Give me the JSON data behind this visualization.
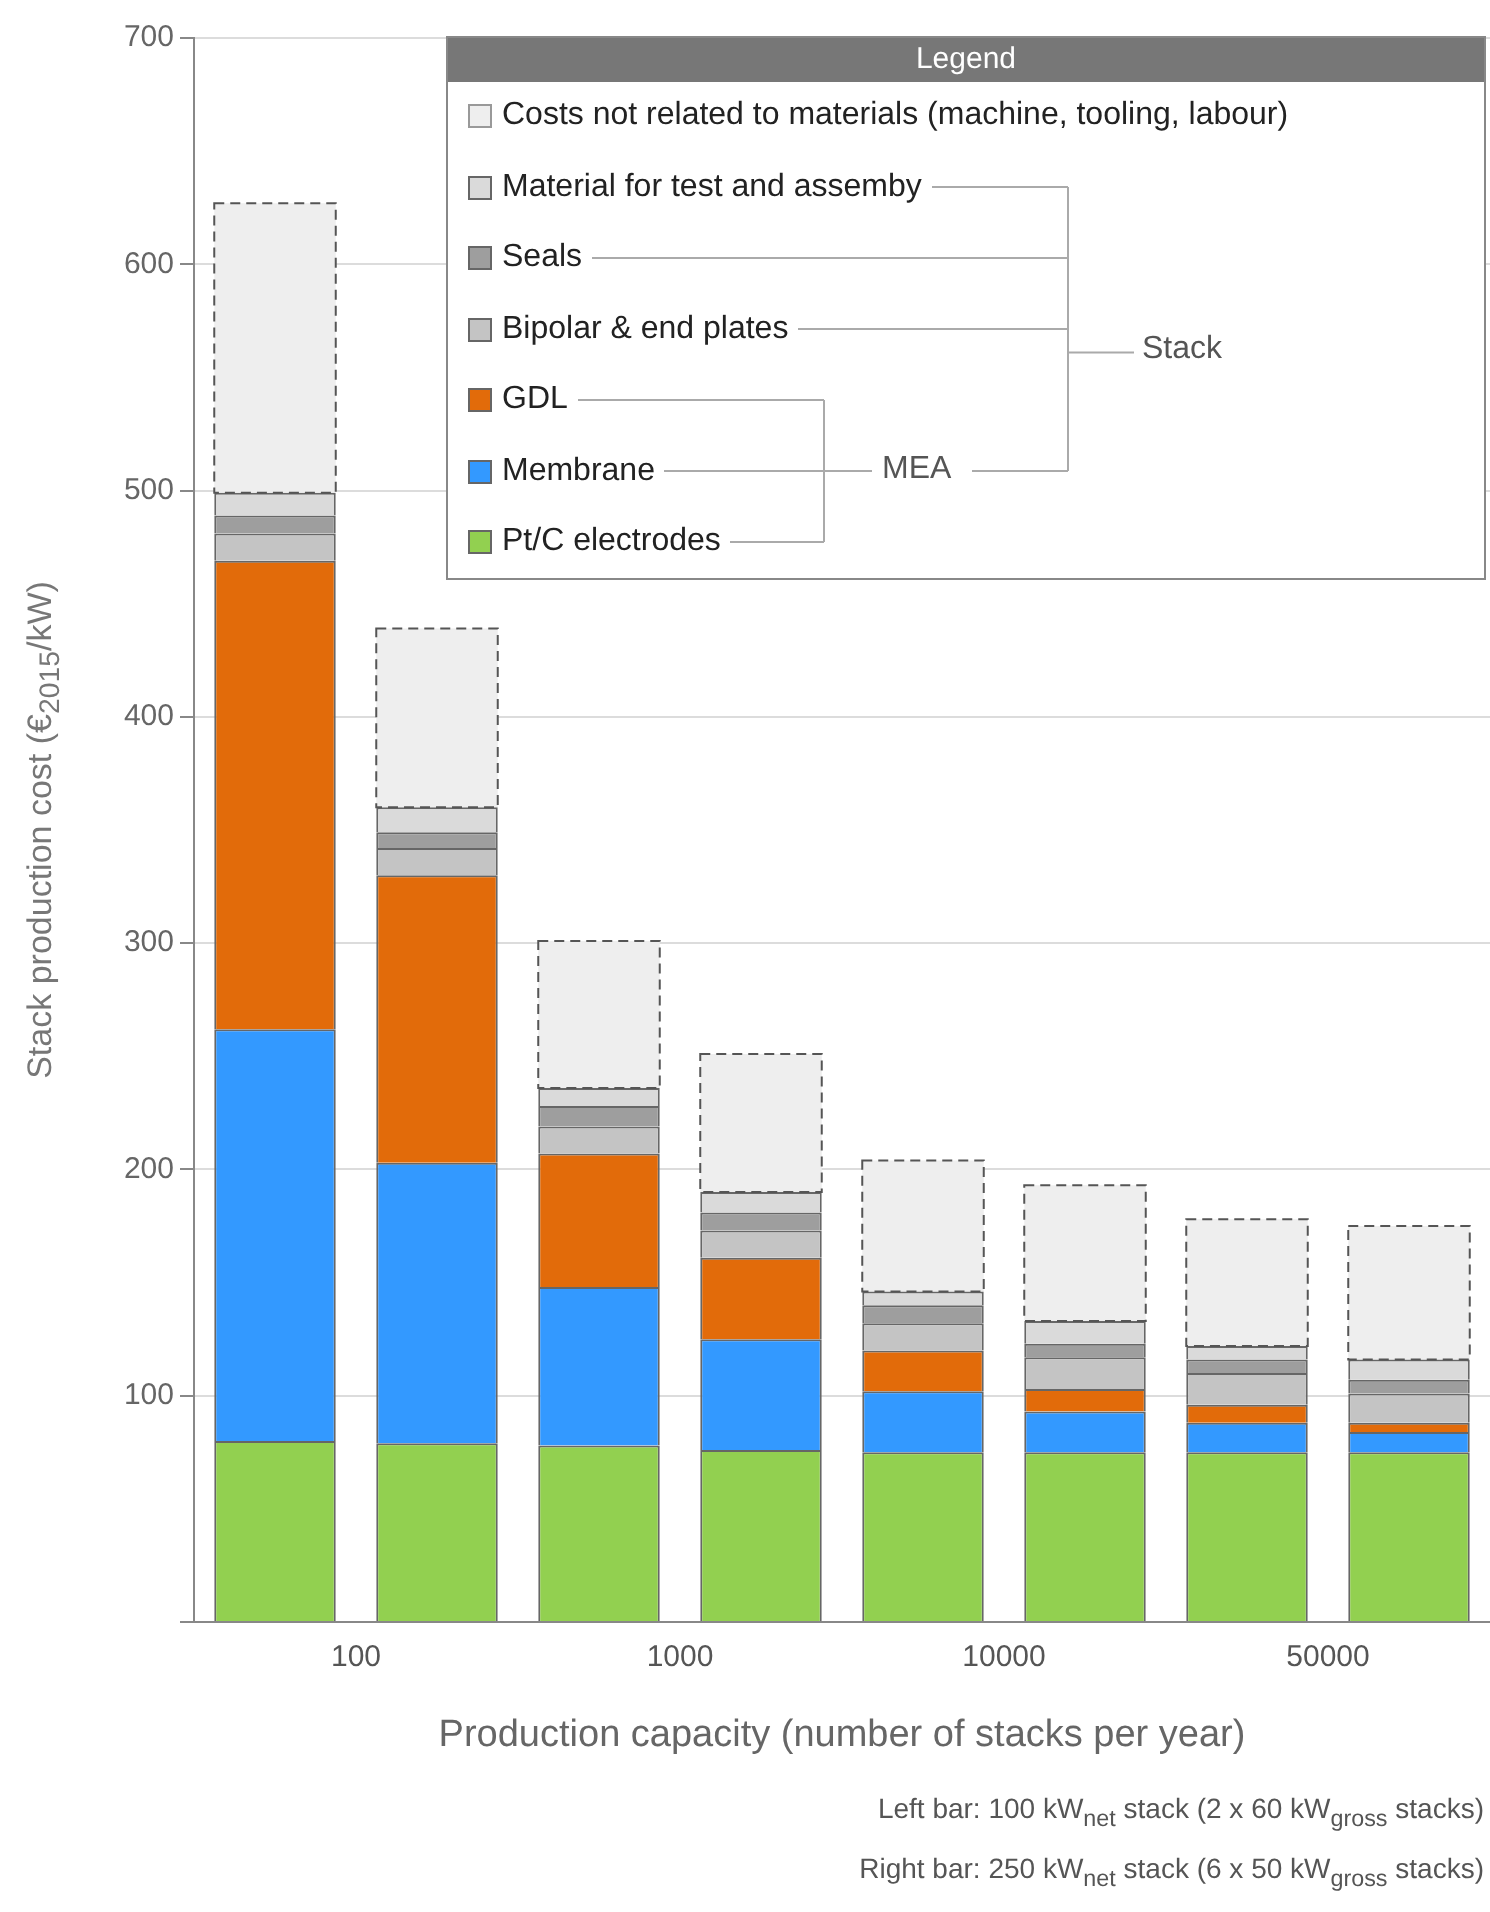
{
  "chart_data": {
    "type": "bar",
    "stacked": true,
    "xlabel": "Production capacity (number of stacks per year)",
    "ylabel": "Stack production cost (€$_{2015}$/kW)",
    "legend_title": "Legend",
    "legend": "top right",
    "grid": "y",
    "categories": [
      "100",
      null,
      "1000",
      null,
      "10000",
      null,
      "50000",
      null
    ],
    "ylim": [
      0,
      700
    ],
    "yticks": [
      {
        "value": 0,
        "label": null
      },
      100,
      200,
      300,
      400,
      500,
      600,
      700
    ],
    "series": [
      {
        "name": "Pt/C electrodes",
        "color": "#92d050",
        "values": [
          80,
          79,
          78,
          76,
          75,
          75,
          75,
          75
        ]
      },
      {
        "name": "Membrane",
        "color": "#3399ff",
        "values": [
          182,
          124,
          70,
          49,
          27,
          18,
          13,
          9
        ]
      },
      {
        "name": "GDL",
        "color": "#e26b0a",
        "values": [
          207,
          127,
          59,
          36,
          18,
          10,
          8,
          4
        ]
      },
      {
        "name": "Bipolar & end plates",
        "color": "#c4c4c4",
        "values": [
          12,
          12,
          12,
          12,
          12,
          14,
          14,
          13
        ]
      },
      {
        "name": "Seals",
        "color": "#9e9e9e",
        "values": [
          8,
          7,
          9,
          8,
          8,
          6,
          6,
          6
        ]
      },
      {
        "name": "Material for test and assemby",
        "color": "#dadada",
        "values": [
          10,
          11,
          8,
          9,
          6,
          10,
          6,
          9
        ]
      },
      {
        "name": "Costs not related to materials (machine, tooling, labour)",
        "color": "#eeeeee",
        "line_style": "dashed",
        "values": [
          128,
          79,
          65,
          61,
          58,
          60,
          56,
          59
        ]
      }
    ],
    "annotations": [
      "Stack",
      "MEA",
      "Left bar: 100 kW$_{net}$ stack (2 x 60 kW$_{gross}$ stacks)",
      "Right bar: 250 kW$_{net}$ stack (6 x 50 kW$_{gross}$ stacks)"
    ]
  }
}
